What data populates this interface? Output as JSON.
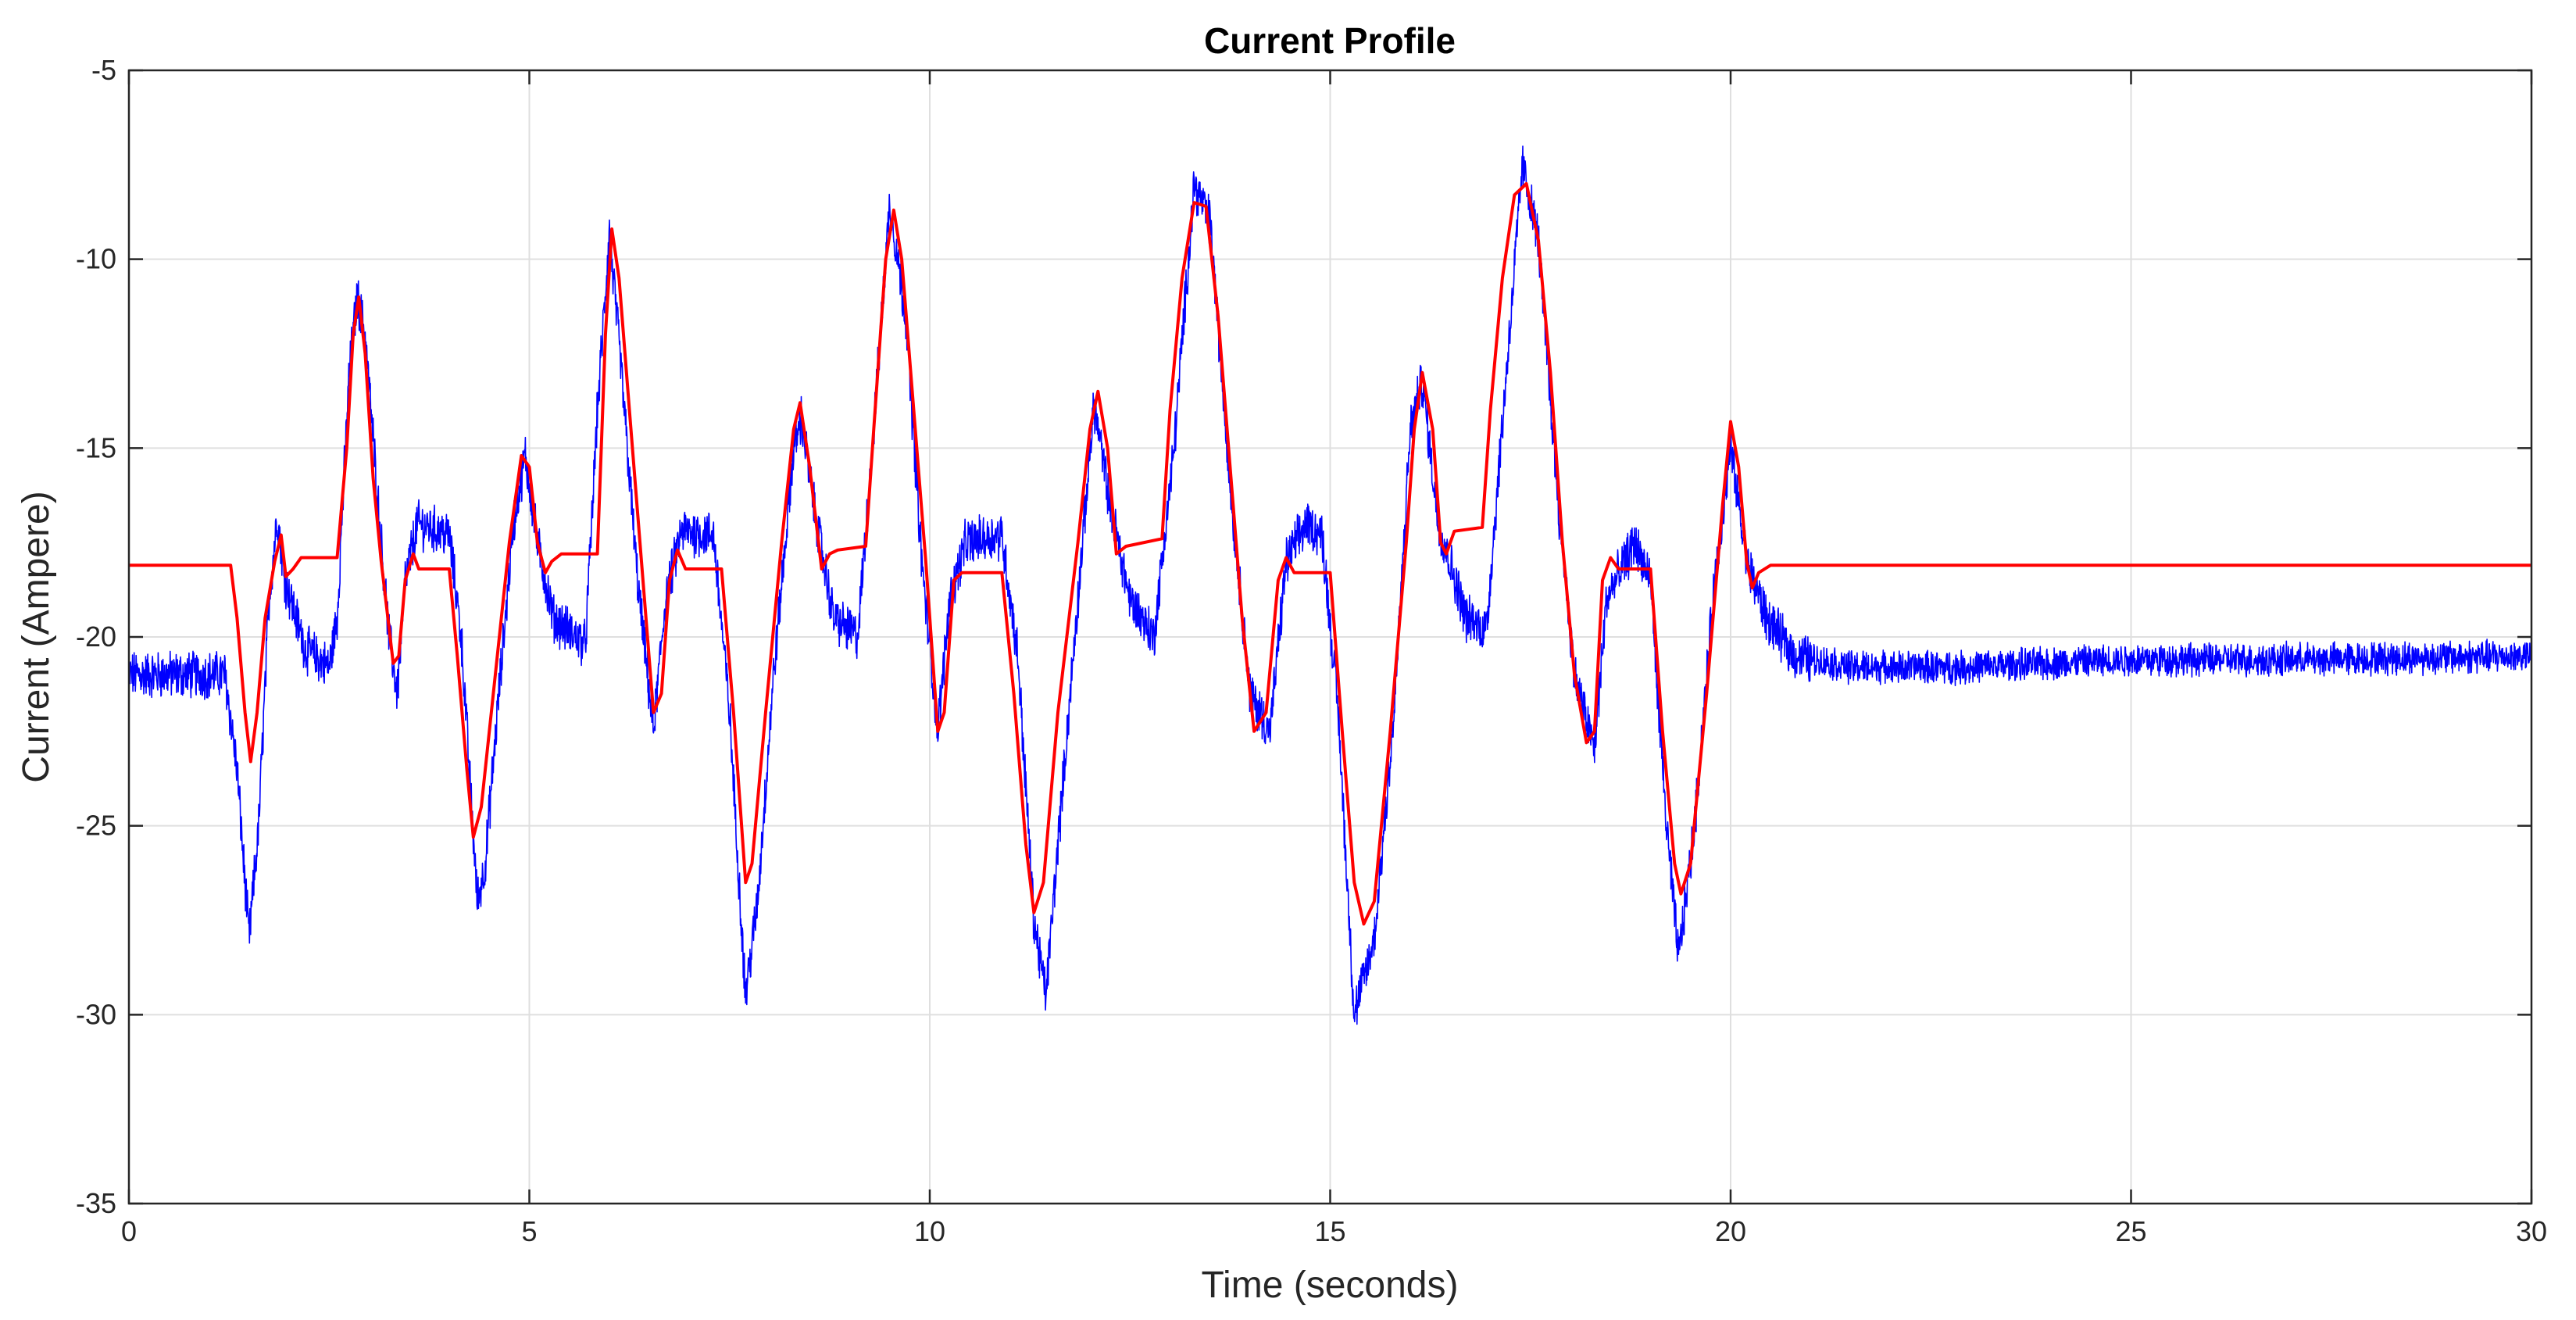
{
  "chart_data": {
    "type": "line",
    "title": "Current Profile",
    "xlabel": "Time (seconds)",
    "ylabel": "Current (Ampere)",
    "xlim": [
      0,
      30
    ],
    "ylim": [
      -35,
      -5
    ],
    "x_ticks": [
      0,
      5,
      10,
      15,
      20,
      25,
      30
    ],
    "y_ticks": [
      -5,
      -10,
      -15,
      -20,
      -25,
      -30,
      -35
    ],
    "grid": true,
    "colors": {
      "measured": "#0000ff",
      "model": "#ff0000"
    },
    "series": [
      {
        "color": "#0000ff",
        "noisy": true,
        "points": [
          [
            0,
            -21.0
          ],
          [
            1.2,
            -21.0
          ],
          [
            1.35,
            -23.5
          ],
          [
            1.5,
            -28.0
          ],
          [
            1.62,
            -25.0
          ],
          [
            1.75,
            -19.0
          ],
          [
            1.85,
            -16.8
          ],
          [
            1.95,
            -18.5
          ],
          [
            2.2,
            -20.3
          ],
          [
            2.5,
            -20.8
          ],
          [
            2.6,
            -19.5
          ],
          [
            2.75,
            -13.0
          ],
          [
            2.85,
            -11.0
          ],
          [
            2.95,
            -12.0
          ],
          [
            3.15,
            -17.5
          ],
          [
            3.25,
            -20.0
          ],
          [
            3.35,
            -21.5
          ],
          [
            3.45,
            -18.5
          ],
          [
            3.6,
            -17.0
          ],
          [
            4.0,
            -17.3
          ],
          [
            4.15,
            -20.0
          ],
          [
            4.35,
            -27.0
          ],
          [
            4.45,
            -26.0
          ],
          [
            4.6,
            -22.0
          ],
          [
            4.8,
            -17.0
          ],
          [
            4.95,
            -15.2
          ],
          [
            5.1,
            -17.5
          ],
          [
            5.3,
            -19.5
          ],
          [
            5.7,
            -20.2
          ],
          [
            5.85,
            -14.0
          ],
          [
            6.0,
            -9.3
          ],
          [
            6.15,
            -13.0
          ],
          [
            6.35,
            -18.5
          ],
          [
            6.55,
            -22.5
          ],
          [
            6.7,
            -19.0
          ],
          [
            6.9,
            -17.2
          ],
          [
            7.3,
            -17.3
          ],
          [
            7.5,
            -22.0
          ],
          [
            7.7,
            -29.5
          ],
          [
            7.85,
            -27.0
          ],
          [
            8.05,
            -21.0
          ],
          [
            8.3,
            -15.0
          ],
          [
            8.4,
            -14.2
          ],
          [
            8.55,
            -16.5
          ],
          [
            8.8,
            -19.5
          ],
          [
            9.1,
            -20.0
          ],
          [
            9.3,
            -14.5
          ],
          [
            9.5,
            -8.5
          ],
          [
            9.7,
            -11.5
          ],
          [
            9.9,
            -18.0
          ],
          [
            10.1,
            -22.5
          ],
          [
            10.25,
            -19.0
          ],
          [
            10.45,
            -17.5
          ],
          [
            10.9,
            -17.3
          ],
          [
            11.1,
            -20.5
          ],
          [
            11.3,
            -27.5
          ],
          [
            11.45,
            -29.5
          ],
          [
            11.6,
            -25.5
          ],
          [
            11.85,
            -19.0
          ],
          [
            12.05,
            -13.8
          ],
          [
            12.25,
            -16.5
          ],
          [
            12.5,
            -19.0
          ],
          [
            12.8,
            -20.0
          ],
          [
            13.05,
            -15.0
          ],
          [
            13.3,
            -8.0
          ],
          [
            13.5,
            -9.0
          ],
          [
            13.75,
            -16.0
          ],
          [
            14.0,
            -21.5
          ],
          [
            14.25,
            -22.5
          ],
          [
            14.45,
            -18.0
          ],
          [
            14.7,
            -17.0
          ],
          [
            14.9,
            -17.3
          ],
          [
            15.1,
            -22.0
          ],
          [
            15.3,
            -30.0
          ],
          [
            15.55,
            -28.0
          ],
          [
            15.8,
            -22.0
          ],
          [
            16.0,
            -14.5
          ],
          [
            16.15,
            -13.2
          ],
          [
            16.35,
            -17.0
          ],
          [
            16.7,
            -19.5
          ],
          [
            16.95,
            -19.8
          ],
          [
            17.2,
            -13.0
          ],
          [
            17.4,
            -7.5
          ],
          [
            17.6,
            -9.5
          ],
          [
            17.85,
            -16.5
          ],
          [
            18.05,
            -21.0
          ],
          [
            18.3,
            -23.0
          ],
          [
            18.45,
            -19.0
          ],
          [
            18.8,
            -17.5
          ],
          [
            19.0,
            -18.5
          ],
          [
            19.2,
            -25.0
          ],
          [
            19.35,
            -28.5
          ],
          [
            19.55,
            -25.0
          ],
          [
            19.8,
            -18.5
          ],
          [
            20.0,
            -15.0
          ],
          [
            20.2,
            -18.0
          ],
          [
            20.45,
            -19.5
          ],
          [
            20.8,
            -20.5
          ],
          [
            21.5,
            -20.8
          ],
          [
            23.0,
            -20.8
          ],
          [
            25.0,
            -20.6
          ],
          [
            27.0,
            -20.6
          ],
          [
            30.0,
            -20.5
          ]
        ]
      },
      {
        "color": "#ff0000",
        "noisy": false,
        "points": [
          [
            0,
            -18.1
          ],
          [
            1.27,
            -18.1
          ],
          [
            1.35,
            -19.5
          ],
          [
            1.45,
            -22.0
          ],
          [
            1.52,
            -23.3
          ],
          [
            1.6,
            -22.0
          ],
          [
            1.7,
            -19.5
          ],
          [
            1.82,
            -18.0
          ],
          [
            1.9,
            -17.3
          ],
          [
            1.96,
            -18.4
          ],
          [
            2.05,
            -18.2
          ],
          [
            2.15,
            -17.9
          ],
          [
            2.6,
            -17.9
          ],
          [
            2.72,
            -15.0
          ],
          [
            2.8,
            -12.0
          ],
          [
            2.87,
            -11.0
          ],
          [
            2.95,
            -12.5
          ],
          [
            3.05,
            -15.8
          ],
          [
            3.15,
            -18.0
          ],
          [
            3.3,
            -20.7
          ],
          [
            3.37,
            -20.5
          ],
          [
            3.45,
            -18.5
          ],
          [
            3.55,
            -17.8
          ],
          [
            3.62,
            -18.2
          ],
          [
            4.0,
            -18.2
          ],
          [
            4.1,
            -20.5
          ],
          [
            4.22,
            -23.5
          ],
          [
            4.3,
            -25.3
          ],
          [
            4.4,
            -24.5
          ],
          [
            4.55,
            -21.5
          ],
          [
            4.75,
            -17.5
          ],
          [
            4.9,
            -15.2
          ],
          [
            5.0,
            -15.5
          ],
          [
            5.1,
            -17.5
          ],
          [
            5.2,
            -18.3
          ],
          [
            5.28,
            -18.0
          ],
          [
            5.4,
            -17.8
          ],
          [
            5.85,
            -17.8
          ],
          [
            5.95,
            -12.0
          ],
          [
            6.03,
            -9.2
          ],
          [
            6.12,
            -10.5
          ],
          [
            6.25,
            -14.0
          ],
          [
            6.4,
            -18.0
          ],
          [
            6.55,
            -22.0
          ],
          [
            6.65,
            -21.5
          ],
          [
            6.75,
            -18.5
          ],
          [
            6.85,
            -17.7
          ],
          [
            6.95,
            -18.2
          ],
          [
            7.4,
            -18.2
          ],
          [
            7.55,
            -22.0
          ],
          [
            7.7,
            -26.5
          ],
          [
            7.78,
            -26.0
          ],
          [
            7.95,
            -22.0
          ],
          [
            8.15,
            -17.5
          ],
          [
            8.3,
            -14.5
          ],
          [
            8.38,
            -13.8
          ],
          [
            8.5,
            -15.5
          ],
          [
            8.65,
            -18.2
          ],
          [
            8.75,
            -17.8
          ],
          [
            8.85,
            -17.7
          ],
          [
            9.2,
            -17.6
          ],
          [
            9.3,
            -14.5
          ],
          [
            9.45,
            -10.0
          ],
          [
            9.55,
            -8.7
          ],
          [
            9.65,
            -10.0
          ],
          [
            9.8,
            -14.0
          ],
          [
            9.95,
            -18.0
          ],
          [
            10.1,
            -22.5
          ],
          [
            10.18,
            -22.0
          ],
          [
            10.3,
            -18.5
          ],
          [
            10.4,
            -18.3
          ],
          [
            10.9,
            -18.3
          ],
          [
            11.05,
            -21.5
          ],
          [
            11.2,
            -25.5
          ],
          [
            11.3,
            -27.3
          ],
          [
            11.42,
            -26.5
          ],
          [
            11.6,
            -22.0
          ],
          [
            11.85,
            -17.5
          ],
          [
            12.0,
            -14.5
          ],
          [
            12.1,
            -13.5
          ],
          [
            12.22,
            -15.0
          ],
          [
            12.33,
            -17.8
          ],
          [
            12.45,
            -17.6
          ],
          [
            12.9,
            -17.4
          ],
          [
            13.0,
            -14.0
          ],
          [
            13.15,
            -10.5
          ],
          [
            13.3,
            -8.5
          ],
          [
            13.45,
            -8.6
          ],
          [
            13.6,
            -11.5
          ],
          [
            13.75,
            -15.5
          ],
          [
            13.9,
            -19.5
          ],
          [
            14.05,
            -22.5
          ],
          [
            14.2,
            -22.0
          ],
          [
            14.35,
            -18.5
          ],
          [
            14.45,
            -17.9
          ],
          [
            14.55,
            -18.3
          ],
          [
            15.0,
            -18.3
          ],
          [
            15.15,
            -22.5
          ],
          [
            15.3,
            -26.5
          ],
          [
            15.42,
            -27.6
          ],
          [
            15.55,
            -27.0
          ],
          [
            15.75,
            -22.5
          ],
          [
            15.95,
            -17.5
          ],
          [
            16.05,
            -14.5
          ],
          [
            16.15,
            -13.0
          ],
          [
            16.28,
            -14.5
          ],
          [
            16.38,
            -17.5
          ],
          [
            16.45,
            -17.8
          ],
          [
            16.55,
            -17.2
          ],
          [
            16.9,
            -17.1
          ],
          [
            17.0,
            -14.0
          ],
          [
            17.15,
            -10.5
          ],
          [
            17.3,
            -8.3
          ],
          [
            17.45,
            -8.0
          ],
          [
            17.6,
            -9.5
          ],
          [
            17.75,
            -13.0
          ],
          [
            17.9,
            -17.5
          ],
          [
            18.05,
            -21.0
          ],
          [
            18.2,
            -22.8
          ],
          [
            18.3,
            -22.5
          ],
          [
            18.4,
            -18.5
          ],
          [
            18.5,
            -17.9
          ],
          [
            18.6,
            -18.2
          ],
          [
            19.0,
            -18.2
          ],
          [
            19.15,
            -22.5
          ],
          [
            19.3,
            -26.0
          ],
          [
            19.38,
            -26.8
          ],
          [
            19.5,
            -26.0
          ],
          [
            19.7,
            -21.5
          ],
          [
            19.9,
            -16.5
          ],
          [
            20.0,
            -14.3
          ],
          [
            20.1,
            -15.5
          ],
          [
            20.2,
            -18.0
          ],
          [
            20.27,
            -18.7
          ],
          [
            20.35,
            -18.3
          ],
          [
            20.5,
            -18.1
          ],
          [
            30,
            -18.1
          ]
        ]
      }
    ]
  }
}
